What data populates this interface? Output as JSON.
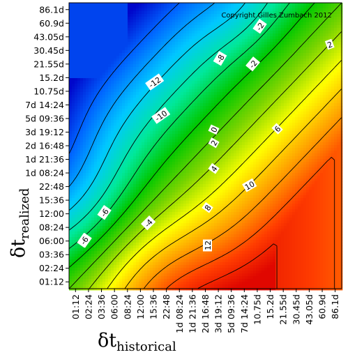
{
  "chart_data": {
    "type": "heatmap",
    "title": "",
    "copyright": "Copyright Gilles Zumbach 2012",
    "xlabel": {
      "symbol": "δt",
      "subscript": "historical"
    },
    "ylabel": {
      "symbol": "δt",
      "subscript": "realized"
    },
    "x_categories": [
      "01:12",
      "02:24",
      "03:36",
      "06:00",
      "08:24",
      "12:00",
      "15:36",
      "22:48",
      "1d 08:24",
      "1d 21:36",
      "2d 16:48",
      "3d 19:12",
      "5d 09:36",
      "7d 14:24",
      "10.75d",
      "15.2d",
      "21.55d",
      "30.45d",
      "43.05d",
      "60.9d",
      "86.1d"
    ],
    "y_categories": [
      "01:12",
      "02:24",
      "03:36",
      "06:00",
      "08:24",
      "12:00",
      "15:36",
      "22:48",
      "1d 08:24",
      "1d 21:36",
      "2d 16:48",
      "3d 19:12",
      "5d 09:36",
      "7d 14:24",
      "10.75d",
      "15.2d",
      "21.55d",
      "30.45d",
      "43.05d",
      "60.9d",
      "86.1d"
    ],
    "value_range": [
      -15,
      14
    ],
    "colormap": [
      "#0000c8",
      "#0064ff",
      "#00c8ff",
      "#00e89a",
      "#00c800",
      "#7ad400",
      "#ffff00",
      "#ffa000",
      "#ff3c00",
      "#dc0000"
    ],
    "contour_levels": [
      -12,
      -10,
      -8,
      -6,
      -4,
      -2,
      0,
      2,
      4,
      6,
      8,
      10,
      12
    ],
    "contour_labels": [
      "-12",
      "-10",
      "-8",
      "-6",
      "-4",
      "-2",
      "0",
      "2",
      "4",
      "6",
      "8",
      "10",
      "12",
      "-2",
      "2",
      "-4",
      "-6",
      "-8",
      "-12",
      "-10"
    ],
    "grid": false,
    "legend": "none"
  }
}
